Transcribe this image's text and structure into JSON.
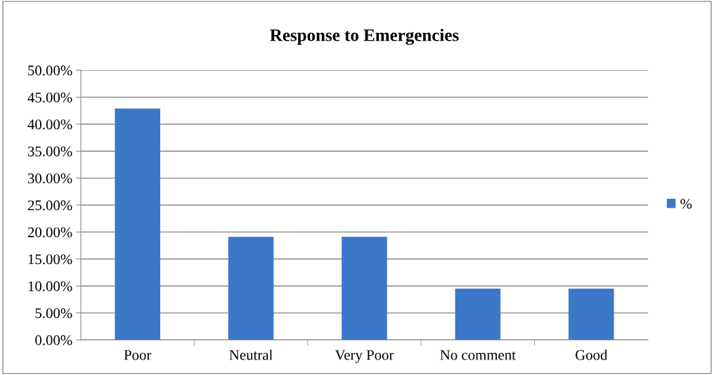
{
  "chart_data": {
    "type": "bar",
    "title": "Response to Emergencies",
    "categories": [
      "Poor",
      "Neutral",
      "Very Poor",
      "No comment",
      "Good"
    ],
    "series": [
      {
        "name": "%",
        "color": "#3b78c8",
        "values": [
          42.9,
          19.1,
          19.1,
          9.5,
          9.5
        ]
      }
    ],
    "ylim": [
      0,
      50
    ],
    "yticks": [
      {
        "value": 0,
        "label": "0.00%"
      },
      {
        "value": 5,
        "label": "5.00%"
      },
      {
        "value": 10,
        "label": "10.00%"
      },
      {
        "value": 15,
        "label": "15.00%"
      },
      {
        "value": 20,
        "label": "20.00%"
      },
      {
        "value": 25,
        "label": "25.00%"
      },
      {
        "value": 30,
        "label": "30.00%"
      },
      {
        "value": 35,
        "label": "35.00%"
      },
      {
        "value": 40,
        "label": "40.00%"
      },
      {
        "value": 45,
        "label": "45.00%"
      },
      {
        "value": 50,
        "label": "50.00%"
      }
    ],
    "grid": "y",
    "legend": "right"
  }
}
